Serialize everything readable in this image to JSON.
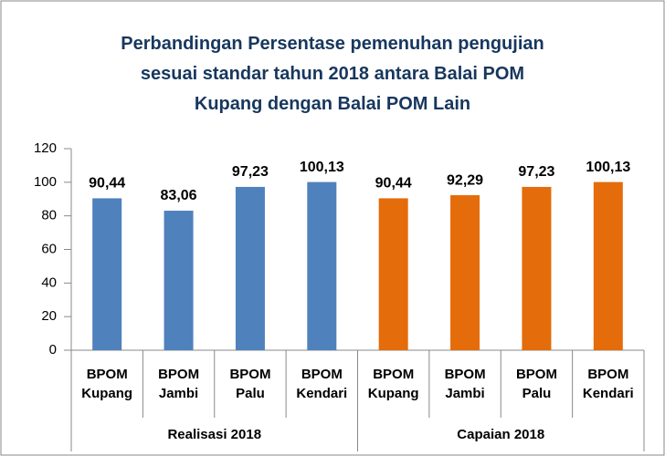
{
  "chart_data": {
    "type": "bar",
    "title": [
      "Perbandingan Persentase pemenuhan pengujian",
      "sesuai standar tahun 2018   antara Balai POM",
      "Kupang dengan Balai POM Lain"
    ],
    "categories": [
      "BPOM Kupang",
      "BPOM Jambi",
      "BPOM Palu",
      "BPOM Kendari",
      "BPOM Kupang",
      "BPOM Jambi",
      "BPOM Palu",
      "BPOM Kendari"
    ],
    "groups": [
      "Realisasi 2018",
      "Capaian 2018"
    ],
    "values": [
      90.44,
      83.06,
      97.23,
      100.13,
      90.44,
      92.29,
      97.23,
      100.13
    ],
    "value_labels": [
      "90,44",
      "83,06",
      "97,23",
      "100,13",
      "90,44",
      "92,29",
      "97,23",
      "100,13"
    ],
    "colors": [
      "#4f81bd",
      "#4f81bd",
      "#4f81bd",
      "#4f81bd",
      "#e46c0a",
      "#e46c0a",
      "#e46c0a",
      "#e46c0a"
    ],
    "ylim": [
      0,
      120
    ],
    "yticks": [
      0,
      20,
      40,
      60,
      80,
      100,
      120
    ],
    "grid": false
  }
}
